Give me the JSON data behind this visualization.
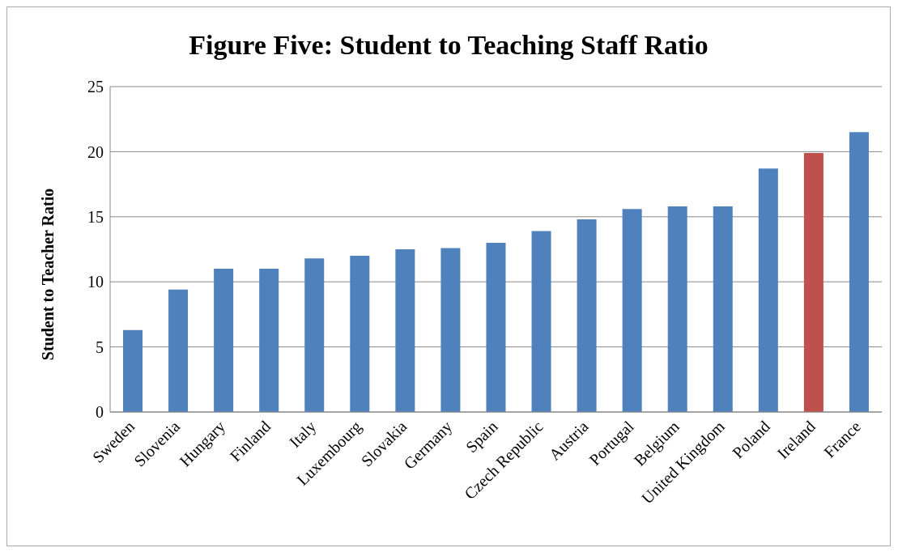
{
  "chart_data": {
    "type": "bar",
    "title": "Figure Five: Student to Teaching Staff Ratio",
    "ylabel": "Student to Teacher Ratio",
    "categories": [
      "Sweden",
      "Slovenia",
      "Hungary",
      "Finland",
      "Italy",
      "Luxembourg",
      "Slovakia",
      "Germany",
      "Spain",
      "Czech Republic",
      "Austria",
      "Portugal",
      "Belgium",
      "United Kingdom",
      "Poland",
      "Ireland",
      "France"
    ],
    "values": [
      6.3,
      9.4,
      11.0,
      11.0,
      11.8,
      12.0,
      12.5,
      12.6,
      13.0,
      13.9,
      14.8,
      15.6,
      15.8,
      15.8,
      18.7,
      19.9,
      21.5
    ],
    "colors": [
      "#4f81bd",
      "#4f81bd",
      "#4f81bd",
      "#4f81bd",
      "#4f81bd",
      "#4f81bd",
      "#4f81bd",
      "#4f81bd",
      "#4f81bd",
      "#4f81bd",
      "#4f81bd",
      "#4f81bd",
      "#4f81bd",
      "#4f81bd",
      "#4f81bd",
      "#c0504d",
      "#4f81bd"
    ],
    "ylim": [
      0,
      25
    ],
    "yticks": [
      0,
      5,
      10,
      15,
      20,
      25
    ],
    "grid": "y",
    "legend": false
  }
}
